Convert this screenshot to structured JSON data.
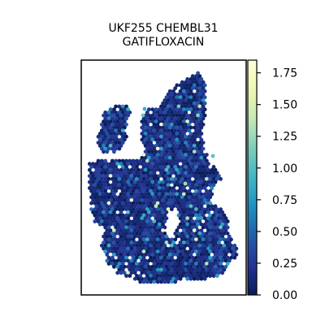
{
  "chart_data": {
    "type": "heatmap",
    "title_line1": "UKF255 CHEMBL31",
    "title_line2": "GATIFLOXACIN",
    "xlabel": "",
    "ylabel": "",
    "grid": false,
    "colorbar": {
      "colormap": "YlGnBu",
      "vmin": 0.0,
      "vmax": 1.85,
      "ticks": [
        0.0,
        0.25,
        0.5,
        0.75,
        1.0,
        1.25,
        1.5,
        1.75
      ],
      "tick_labels": [
        "0.00",
        "0.25",
        "0.50",
        "0.75",
        "1.00",
        "1.25",
        "1.50",
        "1.75"
      ],
      "colors": [
        "#081d58",
        "#253494",
        "#225ea8",
        "#1d91c0",
        "#41b6c4",
        "#7fcdbb",
        "#c7e9b4",
        "#edf8b1",
        "#ffffd9"
      ]
    },
    "spot_value_summary": {
      "typical_range": [
        0.0,
        0.4
      ],
      "max_observed": 1.85
    }
  }
}
